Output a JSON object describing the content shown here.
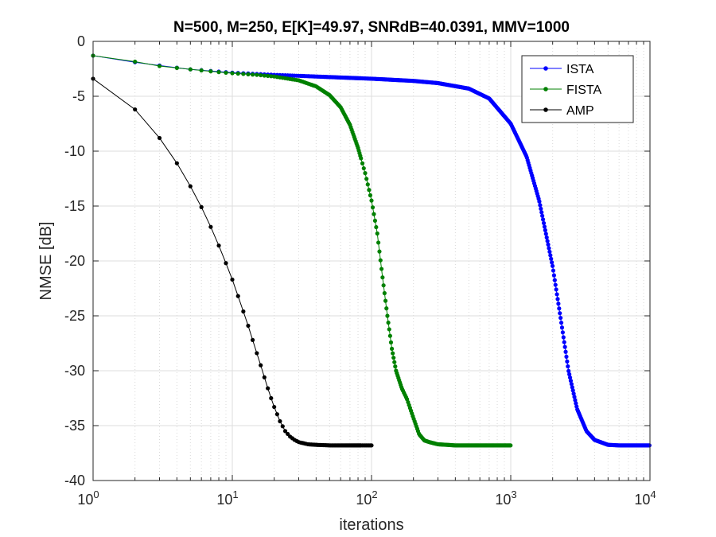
{
  "chart_data": {
    "type": "line",
    "title": "N=500, M=250, E[K]=49.97, SNRdB=40.0391, MMV=1000",
    "xlabel": "iterations",
    "ylabel": "NMSE [dB]",
    "xscale": "log",
    "xlim": [
      1,
      10000
    ],
    "ylim": [
      -40,
      0
    ],
    "grid": true,
    "legend_position": "top-right",
    "x_ticks": [
      {
        "value": 1,
        "base": "10",
        "exp": "0"
      },
      {
        "value": 10,
        "base": "10",
        "exp": "1"
      },
      {
        "value": 100,
        "base": "10",
        "exp": "2"
      },
      {
        "value": 1000,
        "base": "10",
        "exp": "3"
      },
      {
        "value": 10000,
        "base": "10",
        "exp": "4"
      }
    ],
    "y_ticks": [
      {
        "value": 0,
        "label": "0"
      },
      {
        "value": -5,
        "label": "-5"
      },
      {
        "value": -10,
        "label": "-10"
      },
      {
        "value": -15,
        "label": "-15"
      },
      {
        "value": -20,
        "label": "-20"
      },
      {
        "value": -25,
        "label": "-25"
      },
      {
        "value": -30,
        "label": "-30"
      },
      {
        "value": -35,
        "label": "-35"
      },
      {
        "value": -40,
        "label": "-40"
      }
    ],
    "series": [
      {
        "name": "ISTA",
        "color": "#0000ff",
        "iterations": 10000,
        "x": [
          1,
          2,
          3,
          5,
          10,
          20,
          50,
          100,
          200,
          300,
          500,
          700,
          1000,
          1300,
          1600,
          2000,
          2300,
          2600,
          3000,
          3500,
          4000,
          5000,
          6000,
          7000,
          10000
        ],
        "y": [
          -1.3,
          -1.9,
          -2.2,
          -2.55,
          -2.85,
          -3.05,
          -3.25,
          -3.4,
          -3.6,
          -3.8,
          -4.3,
          -5.2,
          -7.5,
          -10.5,
          -14.5,
          -20.5,
          -25.5,
          -30.0,
          -33.5,
          -35.5,
          -36.3,
          -36.75,
          -36.8,
          -36.8,
          -36.8
        ]
      },
      {
        "name": "FISTA",
        "color": "#008000",
        "iterations": 1000,
        "x": [
          1,
          2,
          3,
          5,
          8,
          10,
          15,
          20,
          30,
          40,
          50,
          60,
          70,
          80,
          90,
          100,
          110,
          120,
          130,
          140,
          150,
          165,
          180,
          200,
          220,
          240,
          260,
          300,
          400,
          500,
          700,
          1000
        ],
        "y": [
          -1.3,
          -1.85,
          -2.25,
          -2.55,
          -2.8,
          -2.9,
          -3.05,
          -3.2,
          -3.55,
          -4.1,
          -4.9,
          -6.0,
          -7.6,
          -9.7,
          -12.0,
          -14.5,
          -17.5,
          -21.5,
          -25.0,
          -28.0,
          -30.0,
          -31.6,
          -32.6,
          -34.3,
          -35.8,
          -36.35,
          -36.5,
          -36.7,
          -36.8,
          -36.8,
          -36.8,
          -36.8
        ]
      },
      {
        "name": "AMP",
        "color": "#000000",
        "iterations": 100,
        "x": [
          1,
          2,
          3,
          4,
          5,
          6,
          7,
          8,
          9,
          10,
          11,
          12,
          13,
          14,
          15,
          16,
          17,
          18,
          19,
          20,
          22,
          24,
          26,
          28,
          30,
          35,
          40,
          50,
          60,
          70,
          80,
          90,
          100
        ],
        "y": [
          -3.4,
          -6.2,
          -8.8,
          -11.1,
          -13.2,
          -15.1,
          -16.9,
          -18.6,
          -20.2,
          -21.7,
          -23.2,
          -24.6,
          -25.9,
          -27.2,
          -28.4,
          -29.5,
          -30.6,
          -31.6,
          -32.5,
          -33.3,
          -34.6,
          -35.5,
          -36.0,
          -36.3,
          -36.5,
          -36.7,
          -36.75,
          -36.8,
          -36.8,
          -36.8,
          -36.8,
          -36.8,
          -36.8
        ]
      }
    ]
  }
}
